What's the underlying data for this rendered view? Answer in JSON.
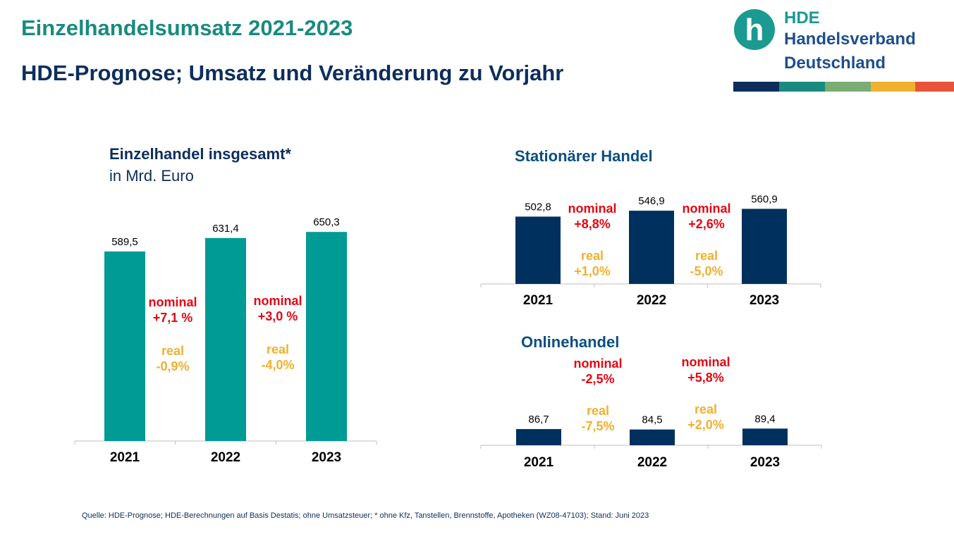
{
  "header": {
    "title": "Einzelhandelsumsatz 2021-2023",
    "subtitle": "HDE-Prognose; Umsatz und Veränderung zu Vorjahr"
  },
  "logo": {
    "mark_letter": "h",
    "line1": "HDE",
    "line2": "Handelsverband",
    "line3": "Deutschland",
    "stripe_colors": [
      "#0d2e5c",
      "#1a8a80",
      "#7aad74",
      "#f0b030",
      "#e8543a"
    ]
  },
  "colors": {
    "teal": "#009b94",
    "navy": "#00305e",
    "nominal": "#e30613",
    "real": "#f0b030",
    "title_navy": "#0d2e5c",
    "title_blue": "#0a4f80"
  },
  "chart_data": [
    {
      "type": "bar",
      "title": "Einzelhandel insgesamt*",
      "subtitle": "in Mrd. Euro",
      "categories": [
        "2021",
        "2022",
        "2023"
      ],
      "values": [
        589.5,
        631.4,
        650.3
      ],
      "value_labels": [
        "589,5",
        "631,4",
        "650,3"
      ],
      "color": "#009b94",
      "annotations": [
        {
          "nominal_label": "nominal",
          "nominal_value": "+7,1 %",
          "real_label": "real",
          "real_value": "-0,9%"
        },
        {
          "nominal_label": "nominal",
          "nominal_value": "+3,0 %",
          "real_label": "real",
          "real_value": "-4,0%"
        }
      ]
    },
    {
      "type": "bar",
      "title": "Stationärer Handel",
      "categories": [
        "2021",
        "2022",
        "2023"
      ],
      "values": [
        502.8,
        546.9,
        560.9
      ],
      "value_labels": [
        "502,8",
        "546,9",
        "560,9"
      ],
      "color": "#00305e",
      "annotations": [
        {
          "nominal_label": "nominal",
          "nominal_value": "+8,8%",
          "real_label": "real",
          "real_value": "+1,0%"
        },
        {
          "nominal_label": "nominal",
          "nominal_value": "+2,6%",
          "real_label": "real",
          "real_value": "-5,0%"
        }
      ]
    },
    {
      "type": "bar",
      "title": "Onlinehandel",
      "categories": [
        "2021",
        "2022",
        "2023"
      ],
      "values": [
        86.7,
        84.5,
        89.4
      ],
      "value_labels": [
        "86,7",
        "84,5",
        "89,4"
      ],
      "color": "#00305e",
      "annotations": [
        {
          "nominal_label": "nominal",
          "nominal_value": "-2,5%",
          "real_label": "real",
          "real_value": "-7,5%"
        },
        {
          "nominal_label": "nominal",
          "nominal_value": "+5,8%",
          "real_label": "real",
          "real_value": "+2,0%"
        }
      ]
    }
  ],
  "footer": {
    "source": "Quelle: HDE-Prognose; HDE-Berechnungen auf Basis Destatis; ohne Umsatzsteuer; * ohne Kfz, Tanstellen, Brennstoffe, Apotheken (WZ08-47103); Stand: Juni 2023"
  }
}
